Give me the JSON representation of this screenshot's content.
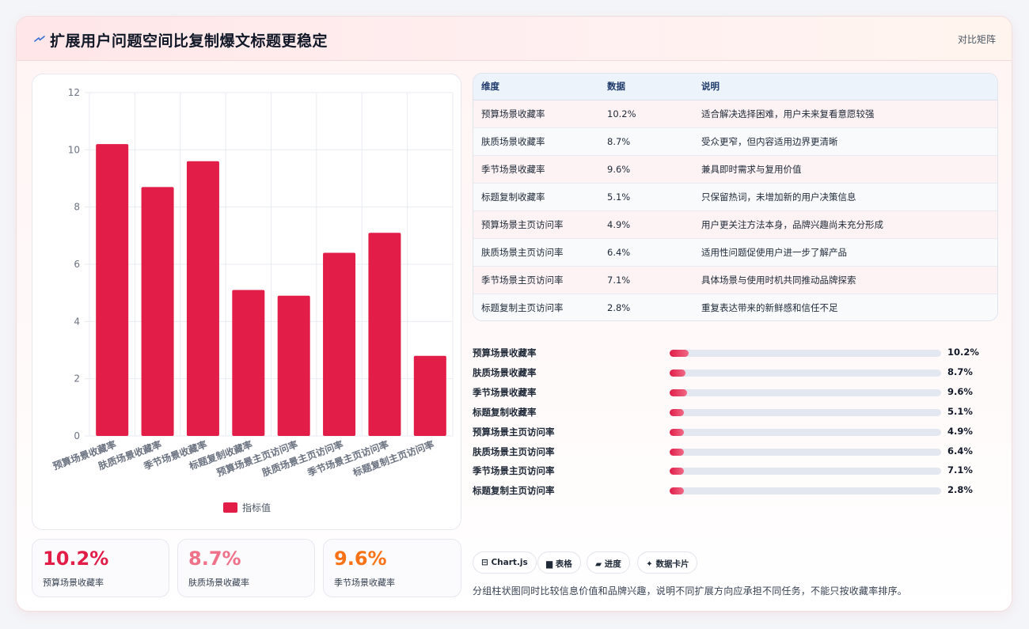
{
  "header": {
    "title": "扩展用户问题空间比复制爆文标题更稳定",
    "right_label": "对比矩阵",
    "icon": "lightning-icon"
  },
  "chart_data": {
    "type": "bar",
    "categories": [
      "预算场景收藏率",
      "肤质场景收藏率",
      "季节场景收藏率",
      "标题复制收藏率",
      "预算场景主页访问率",
      "肤质场景主页访问率",
      "季节场景主页访问率",
      "标题复制主页访问率"
    ],
    "series": [
      {
        "name": "指标值",
        "values": [
          10.2,
          8.7,
          9.6,
          5.1,
          4.9,
          6.4,
          7.1,
          2.8
        ],
        "color": "#e11d48"
      }
    ],
    "ylim": [
      0,
      12
    ],
    "yticks": [
      0,
      2,
      4,
      6,
      8,
      10,
      12
    ],
    "grid": true,
    "legend": "bottom"
  },
  "stats": [
    {
      "value": "10.2%",
      "label": "预算场景收藏率",
      "color": "#e11d48"
    },
    {
      "value": "8.7%",
      "label": "肤质场景收藏率",
      "color": "#f0728a"
    },
    {
      "value": "9.6%",
      "label": "季节场景收藏率",
      "color": "#f97316"
    }
  ],
  "table": {
    "headers": [
      "维度",
      "数据",
      "说明"
    ],
    "rows": [
      [
        "预算场景收藏率",
        "10.2%",
        "适合解决选择困难，用户未来复看意愿较强"
      ],
      [
        "肤质场景收藏率",
        "8.7%",
        "受众更窄，但内容适用边界更清晰"
      ],
      [
        "季节场景收藏率",
        "9.6%",
        "兼具即时需求与复用价值"
      ],
      [
        "标题复制收藏率",
        "5.1%",
        "只保留热词，未增加新的用户决策信息"
      ],
      [
        "预算场景主页访问率",
        "4.9%",
        "用户更关注方法本身，品牌兴趣尚未充分形成"
      ],
      [
        "肤质场景主页访问率",
        "6.4%",
        "适用性问题促使用户进一步了解产品"
      ],
      [
        "季节场景主页访问率",
        "7.1%",
        "具体场景与使用时机共同推动品牌探索"
      ],
      [
        "标题复制主页访问率",
        "2.8%",
        "重复表达带来的新鲜感和信任不足"
      ]
    ]
  },
  "progress": [
    {
      "label": "预算场景收藏率",
      "value": 10.2,
      "text": "10.2%"
    },
    {
      "label": "肤质场景收藏率",
      "value": 8.7,
      "text": "8.7%"
    },
    {
      "label": "季节场景收藏率",
      "value": 9.6,
      "text": "9.6%"
    },
    {
      "label": "标题复制收藏率",
      "value": 5.1,
      "text": "5.1%"
    },
    {
      "label": "预算场景主页访问率",
      "value": 4.9,
      "text": "4.9%"
    },
    {
      "label": "肤质场景主页访问率",
      "value": 6.4,
      "text": "6.4%"
    },
    {
      "label": "季节场景主页访问率",
      "value": 7.1,
      "text": "7.1%"
    },
    {
      "label": "标题复制主页访问率",
      "value": 2.8,
      "text": "2.8%"
    }
  ],
  "chips": [
    {
      "label": "⊟ Chart.js",
      "icon": "chart-icon"
    },
    {
      "label": "▆ 表格",
      "icon": "table-icon"
    },
    {
      "label": "▰ 进度",
      "icon": "progress-icon"
    },
    {
      "label": "✦ 数据卡片",
      "icon": "sparkle-icon"
    }
  ],
  "footer": {
    "note": "分组柱状图同时比较信息价值和品牌兴趣，说明不同扩展方向应承担不同任务，不能只按收藏率排序。"
  }
}
